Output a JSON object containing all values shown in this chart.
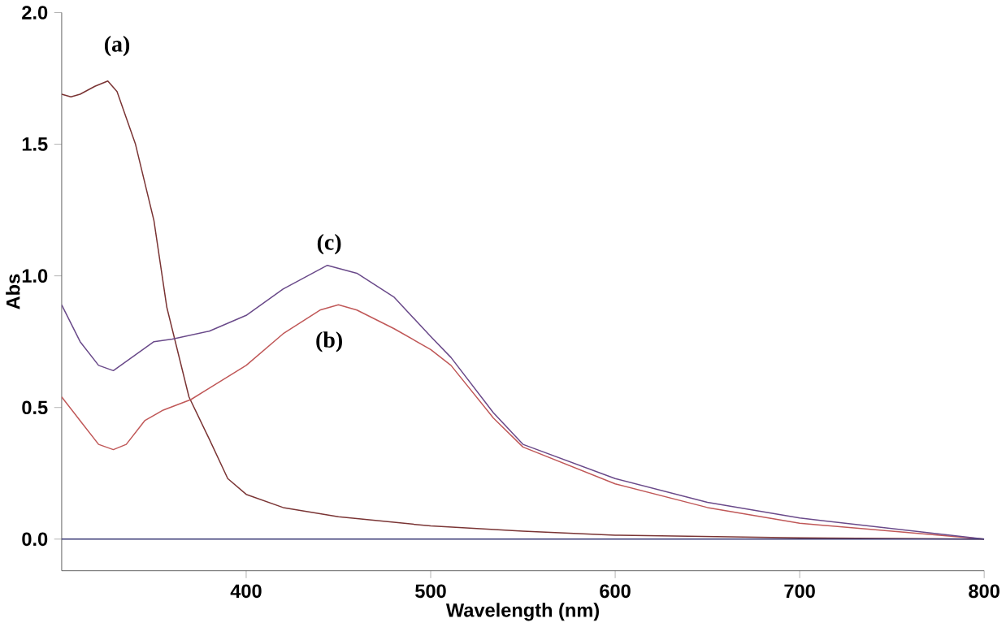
{
  "chart_data": {
    "type": "line",
    "xlabel": "Wavelength (nm)",
    "ylabel": "Abs",
    "xlim": [
      300,
      800
    ],
    "ylim": [
      -0.12,
      2.0
    ],
    "xticks": [
      400,
      500,
      600,
      700,
      800
    ],
    "yticks": [
      {
        "value": 0,
        "label": "0.0"
      },
      {
        "value": 0.5,
        "label": "0.5"
      },
      {
        "value": 1.0,
        "label": "1.0"
      },
      {
        "value": 1.5,
        "label": "1.5"
      },
      {
        "value": 2.0,
        "label": "2.0"
      }
    ],
    "grid": false,
    "marker": "none",
    "line_style": "solid",
    "series": [
      {
        "color": "#7a3434",
        "x": [
          300,
          305,
          310,
          318,
          325,
          330,
          340,
          350,
          357,
          369,
          380,
          390,
          400,
          420,
          450,
          500,
          550,
          600,
          700,
          800
        ],
        "values": [
          1.69,
          1.68,
          1.69,
          1.72,
          1.74,
          1.7,
          1.5,
          1.21,
          0.88,
          0.54,
          0.38,
          0.23,
          0.17,
          0.12,
          0.085,
          0.05,
          0.03,
          0.015,
          0.005,
          0
        ]
      },
      {
        "color": "#c05858",
        "x": [
          300,
          310,
          320,
          328,
          335,
          345,
          355,
          370,
          400,
          420,
          440,
          450,
          460,
          480,
          500,
          511,
          534,
          550,
          600,
          650,
          700,
          750,
          800
        ],
        "values": [
          0.54,
          0.45,
          0.36,
          0.34,
          0.36,
          0.45,
          0.49,
          0.53,
          0.66,
          0.78,
          0.87,
          0.89,
          0.87,
          0.8,
          0.72,
          0.66,
          0.46,
          0.35,
          0.21,
          0.12,
          0.06,
          0.03,
          0
        ]
      },
      {
        "color": "#6a4a8a",
        "x": [
          300,
          310,
          320,
          328,
          340,
          350,
          360,
          380,
          400,
          420,
          444,
          460,
          480,
          500,
          511,
          534,
          550,
          600,
          650,
          700,
          750,
          800
        ],
        "values": [
          0.89,
          0.75,
          0.66,
          0.64,
          0.7,
          0.75,
          0.76,
          0.79,
          0.85,
          0.95,
          1.04,
          1.01,
          0.92,
          0.77,
          0.69,
          0.48,
          0.36,
          0.23,
          0.14,
          0.08,
          0.04,
          0
        ]
      },
      {
        "color": "#3c3c78",
        "x": [
          300,
          800
        ],
        "values": [
          0,
          0
        ]
      }
    ],
    "annotations": [
      "(a)",
      "(c)",
      "(b)"
    ]
  }
}
